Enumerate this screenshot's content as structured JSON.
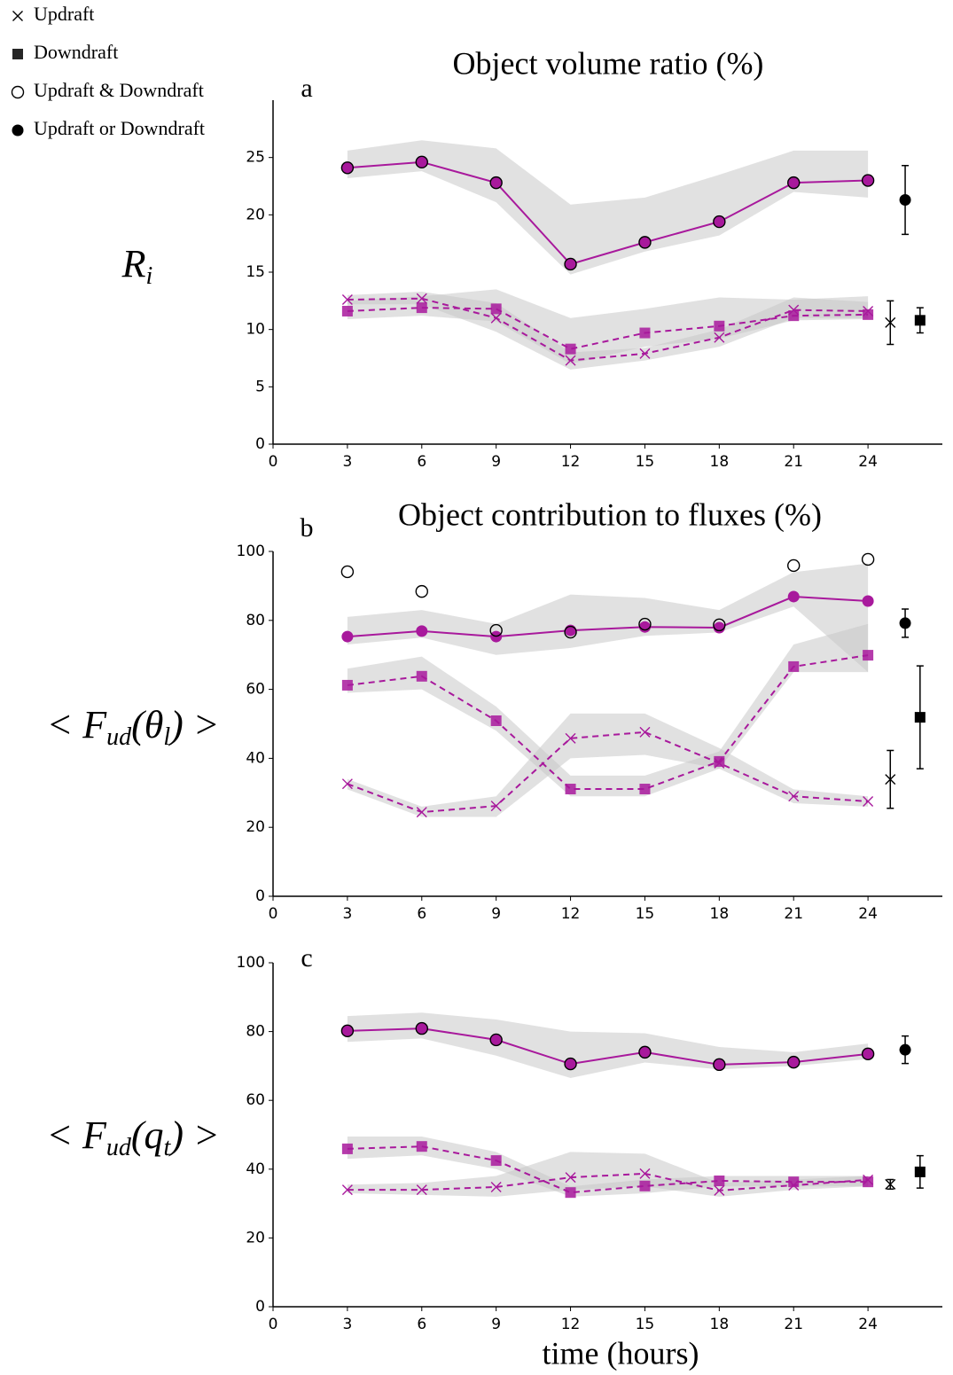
{
  "chart_data": [
    {
      "type": "line",
      "title": "Object volume ratio (%)",
      "panel": "a",
      "y_label": [
        "R",
        "i"
      ],
      "x": [
        3,
        6,
        9,
        12,
        15,
        18,
        21,
        24
      ],
      "xlim": [
        0,
        27
      ],
      "xticks": [
        0,
        3,
        6,
        9,
        12,
        15,
        18,
        21,
        24
      ],
      "ylim": [
        0,
        30
      ],
      "yticks": [
        0,
        5,
        10,
        15,
        20,
        25
      ],
      "series": [
        {
          "name": "Updraft",
          "marker": "x",
          "line": "dashed",
          "color": "#a8199c",
          "values": [
            12.6,
            12.7,
            11.0,
            7.3,
            7.9,
            9.3,
            11.7,
            11.6
          ],
          "band_low": [
            12.2,
            12.2,
            9.8,
            6.5,
            7.3,
            8.5,
            11.0,
            11.0
          ],
          "band_high": [
            13.0,
            13.3,
            12.3,
            8.0,
            8.4,
            10.0,
            12.8,
            12.4
          ]
        },
        {
          "name": "Downdraft",
          "marker": "square",
          "line": "dashed",
          "color": "#a8199c",
          "values": [
            11.6,
            11.9,
            11.8,
            8.3,
            9.7,
            10.3,
            11.2,
            11.3
          ],
          "band_low": [
            10.9,
            11.2,
            10.7,
            7.0,
            8.5,
            9.2,
            10.8,
            10.9
          ],
          "band_high": [
            12.5,
            12.9,
            13.5,
            11.0,
            11.8,
            12.8,
            12.6,
            12.9
          ]
        },
        {
          "name": "Updraft & Downdraft",
          "marker": "open-circle",
          "line": "none",
          "color": "#000000",
          "values": [
            24.1,
            24.6,
            22.8,
            15.7,
            17.6,
            19.4,
            22.8,
            23.0
          ]
        },
        {
          "name": "Updraft or Downdraft",
          "marker": "circle",
          "line": "solid",
          "color": "#a8199c",
          "values": [
            24.1,
            24.6,
            22.8,
            15.7,
            17.6,
            19.4,
            22.8,
            23.0
          ],
          "band_low": [
            23.2,
            23.8,
            21.1,
            14.8,
            16.8,
            18.2,
            22.0,
            21.5
          ],
          "band_high": [
            25.6,
            26.5,
            25.8,
            20.9,
            21.5,
            23.5,
            25.6,
            25.6
          ]
        }
      ],
      "summary_color": "#000000",
      "summary": [
        {
          "marker": "x",
          "x": 24.9,
          "value": 10.6,
          "error": 1.9
        },
        {
          "marker": "circle",
          "x": 25.5,
          "value": 21.3,
          "error": 3.0
        },
        {
          "marker": "square",
          "x": 26.1,
          "value": 10.8,
          "error": 1.1
        }
      ]
    },
    {
      "type": "line",
      "title": "Object contribution to fluxes (%)",
      "panel": "b",
      "y_label": [
        "< F",
        "ud",
        "(θ",
        "l",
        ") >"
      ],
      "x": [
        3,
        6,
        9,
        12,
        15,
        18,
        21,
        24
      ],
      "xlim": [
        0,
        27
      ],
      "xticks": [
        0,
        3,
        6,
        9,
        12,
        15,
        18,
        21,
        24
      ],
      "ylim": [
        0,
        100
      ],
      "yticks": [
        0,
        20,
        40,
        60,
        80,
        100
      ],
      "series": [
        {
          "marker": "x",
          "line": "dashed",
          "color": "#a8199c",
          "values": [
            32.6,
            24.4,
            26.2,
            45.8,
            47.6,
            38.6,
            29.0,
            27.5
          ],
          "band_low": [
            31,
            23,
            23,
            40,
            41,
            37,
            27,
            26
          ],
          "band_high": [
            34,
            26,
            29,
            53,
            53,
            43,
            31,
            29
          ]
        },
        {
          "marker": "square",
          "line": "dashed",
          "color": "#a8199c",
          "values": [
            61.2,
            63.8,
            50.9,
            31.1,
            31.1,
            39.1,
            66.6,
            69.9
          ],
          "band_low": [
            59,
            60,
            48,
            29,
            29,
            37,
            65,
            65
          ],
          "band_high": [
            66,
            69.5,
            55,
            35,
            35,
            42,
            73,
            79
          ]
        },
        {
          "marker": "open-circle",
          "line": "none",
          "color": "#000000",
          "values": [
            94.1,
            88.4,
            77.1,
            76.6,
            78.9,
            78.7,
            95.9,
            97.7
          ]
        },
        {
          "marker": "circle",
          "line": "solid",
          "color": "#a8199c",
          "values": [
            75.3,
            76.9,
            75.3,
            77.1,
            78.1,
            77.9,
            86.9,
            85.6
          ],
          "band_low": [
            73,
            75,
            70,
            72,
            75.5,
            76.5,
            84,
            65
          ],
          "band_high": [
            81,
            83,
            79,
            87.5,
            86.5,
            83,
            94,
            96.5
          ]
        }
      ],
      "summary_color": "#000000",
      "summary": [
        {
          "marker": "x",
          "x": 24.9,
          "value": 33.9,
          "error": 8.4
        },
        {
          "marker": "circle",
          "x": 25.5,
          "value": 79.2,
          "error": 4.1
        },
        {
          "marker": "square",
          "x": 26.1,
          "value": 51.9,
          "error": 14.9
        }
      ]
    },
    {
      "type": "line",
      "panel": "c",
      "y_label": [
        "< F",
        "ud",
        "(q",
        "t",
        ") >"
      ],
      "x_label": "time (hours)",
      "x": [
        3,
        6,
        9,
        12,
        15,
        18,
        21,
        24
      ],
      "xlim": [
        0,
        27
      ],
      "xticks": [
        0,
        3,
        6,
        9,
        12,
        15,
        18,
        21,
        24
      ],
      "ylim": [
        0,
        100
      ],
      "yticks": [
        0,
        20,
        40,
        60,
        80,
        100
      ],
      "series": [
        {
          "marker": "x",
          "line": "dashed",
          "color": "#a8199c",
          "values": [
            34.0,
            34.0,
            34.8,
            37.6,
            38.7,
            33.8,
            35.3,
            36.9
          ],
          "band_low": [
            33,
            32.5,
            32,
            34,
            35,
            32,
            34,
            35
          ],
          "band_high": [
            35.5,
            36,
            38,
            45,
            44.5,
            36,
            37,
            38
          ]
        },
        {
          "marker": "square",
          "line": "dashed",
          "color": "#a8199c",
          "values": [
            45.9,
            46.6,
            42.5,
            33.2,
            35.1,
            36.6,
            36.3,
            36.3
          ],
          "band_low": [
            43,
            44,
            40,
            32,
            33,
            35,
            35,
            35
          ],
          "band_high": [
            49.5,
            49.5,
            45,
            35,
            37,
            38,
            38,
            38
          ]
        },
        {
          "marker": "open-circle",
          "line": "none",
          "color": "#000000",
          "values": [
            80.2,
            80.9,
            77.6,
            70.6,
            74.0,
            70.4,
            71.1,
            73.5
          ]
        },
        {
          "marker": "circle",
          "line": "solid",
          "color": "#a8199c",
          "values": [
            80.2,
            80.9,
            77.6,
            70.6,
            74.0,
            70.4,
            71.1,
            73.5
          ],
          "band_low": [
            77,
            78,
            73,
            66.5,
            71,
            69,
            70,
            72
          ],
          "band_high": [
            84.5,
            85.5,
            83.5,
            80,
            79.5,
            75.5,
            74,
            76.5
          ]
        }
      ],
      "summary_color": "#000000",
      "summary": [
        {
          "marker": "x",
          "x": 24.9,
          "value": 35.6,
          "error": 1.4
        },
        {
          "marker": "circle",
          "x": 25.5,
          "value": 74.7,
          "error": 4.0
        },
        {
          "marker": "square",
          "x": 26.1,
          "value": 39.2,
          "error": 4.7
        }
      ]
    }
  ]
}
